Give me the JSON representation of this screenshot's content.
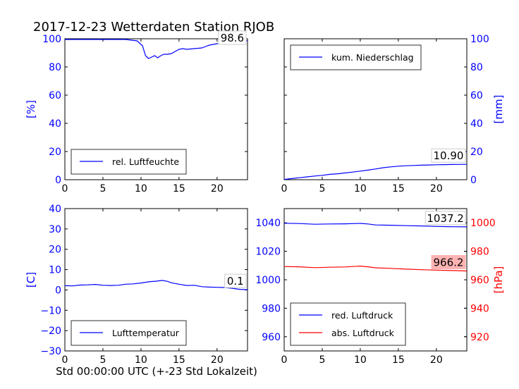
{
  "figure": {
    "title": "2017-12-23 Wetterdaten Station RJOB",
    "xlabel": "Std 00:00:00 UTC (+-23 Std Lokalzeit)"
  },
  "chart_data": [
    {
      "type": "line",
      "panel": "top-left",
      "ylabel": "[%]",
      "ylabel_color": "#0000ff",
      "xlim": [
        0,
        24
      ],
      "ylim": [
        0,
        100
      ],
      "xticks": [
        "0",
        "5",
        "10",
        "15",
        "20"
      ],
      "yticks": [
        "0",
        "20",
        "40",
        "60",
        "80",
        "100"
      ],
      "legend": {
        "position": "lower-left"
      },
      "annotation": {
        "text": "98.6",
        "style": "plain"
      },
      "series": [
        {
          "name": "rel. Luftfeuchte",
          "color": "#0000ff",
          "x": [
            0,
            2,
            4,
            6,
            8,
            9.5,
            10.2,
            10.6,
            11,
            11.4,
            11.8,
            12.2,
            12.6,
            13,
            13.5,
            14,
            14.5,
            15,
            15.5,
            16,
            17,
            18,
            18.5,
            19,
            20,
            21,
            22,
            23,
            24
          ],
          "y": [
            99.5,
            99.5,
            99.5,
            99.5,
            99.5,
            98.5,
            95,
            88,
            86,
            87,
            88,
            86.5,
            88,
            89,
            89,
            89.5,
            91,
            92.5,
            93,
            92.5,
            93,
            93.5,
            94.5,
            95.5,
            96.5,
            97.5,
            98,
            98.3,
            98.6
          ]
        }
      ]
    },
    {
      "type": "line",
      "panel": "top-right",
      "ylabel": "[mm]",
      "ylabel_color": "#0000ff",
      "xlim": [
        0,
        24
      ],
      "ylim": [
        0,
        100
      ],
      "xticks": [
        "0",
        "5",
        "10",
        "15",
        "20"
      ],
      "yticks": [
        "0",
        "20",
        "40",
        "60",
        "80",
        "100"
      ],
      "legend": {
        "position": "upper-left"
      },
      "annotation": {
        "text": "10.90",
        "style": "plain"
      },
      "series": [
        {
          "name": "kum. Niederschlag",
          "color": "#0000ff",
          "x": [
            0,
            1,
            2,
            3,
            4,
            5,
            6,
            7,
            8,
            9,
            10,
            11,
            12,
            13,
            14,
            15,
            16,
            17,
            18,
            19,
            20,
            21,
            22,
            23,
            24
          ],
          "y": [
            0.2,
            0.8,
            1.4,
            2.0,
            2.6,
            3.1,
            3.8,
            4.2,
            4.8,
            5.4,
            6.1,
            6.8,
            7.6,
            8.5,
            9.1,
            9.6,
            9.9,
            10.1,
            10.3,
            10.45,
            10.6,
            10.7,
            10.8,
            10.85,
            10.9
          ]
        }
      ]
    },
    {
      "type": "line",
      "panel": "bottom-left",
      "ylabel": "[C]",
      "ylabel_color": "#0000ff",
      "xlim": [
        0,
        24
      ],
      "ylim": [
        -30,
        40
      ],
      "xticks": [
        "0",
        "5",
        "10",
        "15",
        "20"
      ],
      "yticks": [
        "−30",
        "−20",
        "−10",
        "0",
        "10",
        "20",
        "30",
        "40"
      ],
      "legend": {
        "position": "lower-left"
      },
      "annotation": {
        "text": "0.1",
        "style": "plain"
      },
      "series": [
        {
          "name": "Lufttemperatur",
          "color": "#0000ff",
          "x": [
            0,
            1,
            2,
            3,
            4,
            5,
            6,
            7,
            8,
            9,
            10,
            11,
            12,
            12.8,
            13.5,
            14,
            15,
            16,
            17,
            18,
            19,
            20,
            21,
            22,
            23,
            24
          ],
          "y": [
            2.1,
            2.0,
            2.4,
            2.5,
            2.7,
            2.3,
            2.2,
            2.3,
            2.8,
            3.0,
            3.4,
            4.0,
            4.3,
            4.7,
            4.2,
            3.5,
            2.8,
            2.2,
            2.3,
            1.6,
            1.4,
            1.3,
            1.2,
            0.8,
            0.3,
            0.1
          ]
        }
      ]
    },
    {
      "type": "line",
      "panel": "bottom-right",
      "ylabel": "[hPa]",
      "ylabel_color": "#ff0000",
      "xlim": [
        0,
        24
      ],
      "ylim_left": [
        950,
        1050
      ],
      "ylim_right": [
        910,
        1010
      ],
      "xticks": [
        "0",
        "5",
        "10",
        "15",
        "20"
      ],
      "yticks_left": [
        "960",
        "980",
        "1000",
        "1020",
        "1040"
      ],
      "yticks_right": [
        "920",
        "940",
        "960",
        "980",
        "1000"
      ],
      "legend": {
        "position": "lower-left"
      },
      "annotations": [
        {
          "text": "1037.2",
          "style": "plain"
        },
        {
          "text": "966.2",
          "style": "highlight",
          "color": "#ffb3b3"
        }
      ],
      "series": [
        {
          "name": "red. Luftdruck",
          "color": "#0000ff",
          "axis": "left",
          "x": [
            0,
            2,
            4,
            6,
            8,
            10,
            11,
            12,
            14,
            16,
            18,
            20,
            22,
            24
          ],
          "y": [
            1039.7,
            1039.5,
            1039.0,
            1039.2,
            1039.3,
            1039.6,
            1039.2,
            1038.5,
            1038.3,
            1038.0,
            1037.8,
            1037.5,
            1037.3,
            1037.2
          ]
        },
        {
          "name": "abs. Luftdruck",
          "color": "#ff0000",
          "axis": "right",
          "x": [
            0,
            2,
            4,
            6,
            8,
            10,
            11,
            12,
            14,
            16,
            18,
            20,
            22,
            24
          ],
          "y": [
            969.3,
            969.1,
            968.5,
            968.8,
            969.0,
            969.6,
            969.1,
            968.4,
            968.0,
            967.5,
            967.1,
            966.8,
            966.5,
            966.2
          ]
        }
      ]
    }
  ]
}
